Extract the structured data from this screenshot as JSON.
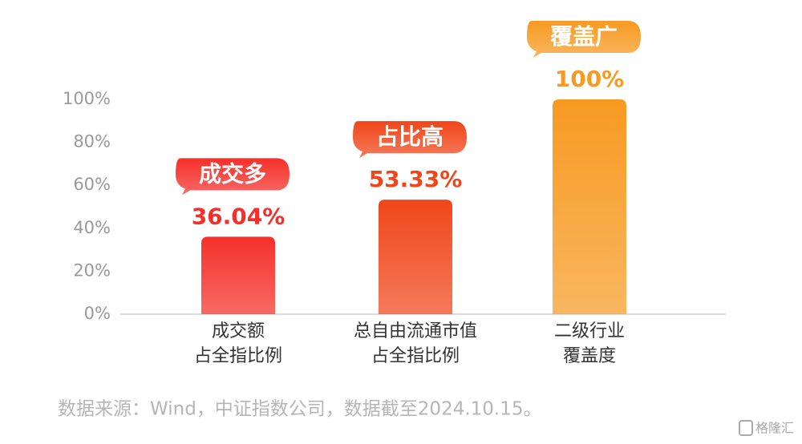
{
  "chart_data": {
    "type": "bar",
    "categories": [
      [
        "成交额",
        "占全指比例"
      ],
      [
        "总自由流通市值",
        "占全指比例"
      ],
      [
        "二级行业",
        "覆盖度"
      ]
    ],
    "values": [
      36.04,
      53.33,
      100
    ],
    "value_labels": [
      "36.04%",
      "53.33%",
      "100%"
    ],
    "annotations": [
      "成交多",
      "占比高",
      "覆盖广"
    ],
    "colors": [
      "#f5302a",
      "#f0461a",
      "#f79a22"
    ],
    "ylim": [
      0,
      100
    ],
    "yticks": [
      {
        "value": 0,
        "label": "0%"
      },
      {
        "value": 20,
        "label": "20%"
      },
      {
        "value": 40,
        "label": "40%"
      },
      {
        "value": 60,
        "label": "60%"
      },
      {
        "value": 80,
        "label": "80%"
      },
      {
        "value": 100,
        "label": "100%"
      }
    ],
    "grid": false,
    "source": "数据来源：Wind，中证指数公司，数据截至2024.10.15。",
    "watermark": "格隆汇"
  }
}
